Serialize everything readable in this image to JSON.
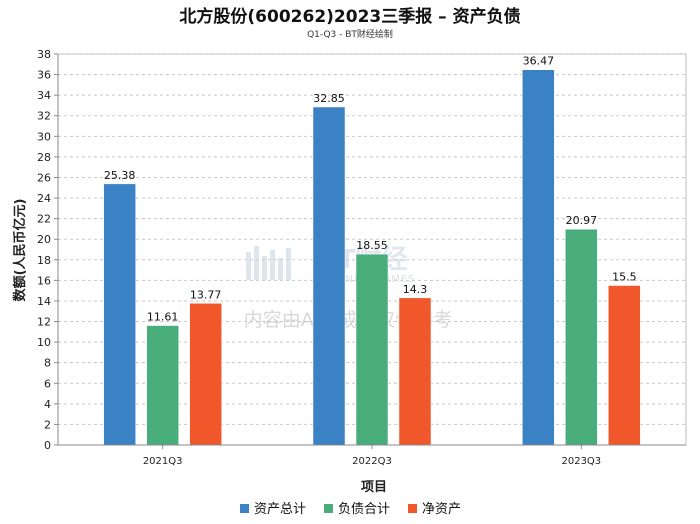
{
  "chart_data": {
    "type": "bar",
    "title": "北方股份(600262)2023三季报 – 资产负债",
    "subtitle": "Q1-Q3 - BT财经绘制",
    "xlabel": "项目",
    "ylabel": "数额(人民币亿元)",
    "ylim": [
      0,
      38
    ],
    "ytick_step": 2,
    "grid": true,
    "legend_position": "bottom",
    "categories": [
      "2021Q3",
      "2022Q3",
      "2023Q3"
    ],
    "series": [
      {
        "name": "资产总计",
        "color": "#3a82c4",
        "values": [
          25.38,
          32.85,
          36.47
        ]
      },
      {
        "name": "负债合计",
        "color": "#48ad7a",
        "values": [
          11.61,
          18.55,
          20.97
        ]
      },
      {
        "name": "净资产",
        "color": "#f0582b",
        "values": [
          13.77,
          14.3,
          15.5
        ]
      }
    ]
  },
  "watermark": {
    "brand": "BT财经",
    "brand_en": "BUSINESS TIMES",
    "notice": "内容由AI生成，仅供参考"
  }
}
